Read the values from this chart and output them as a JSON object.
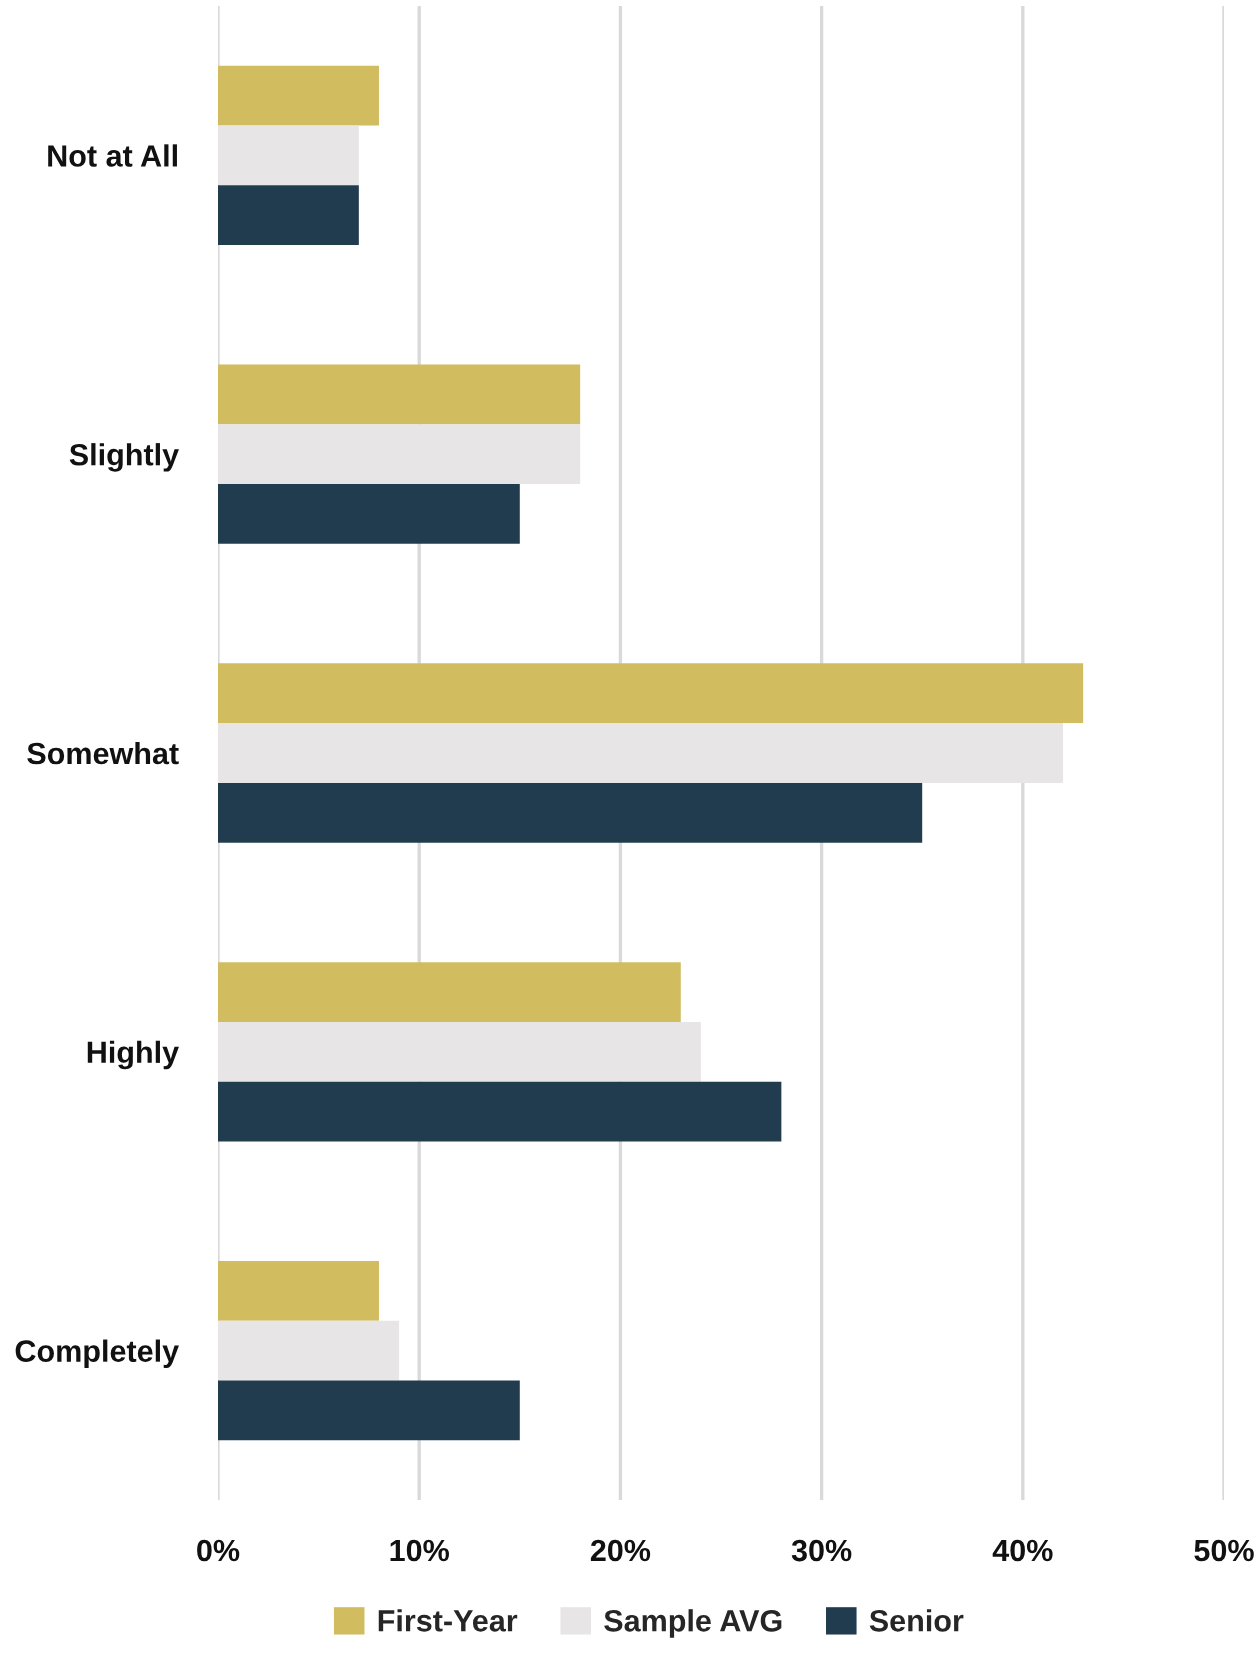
{
  "chart_data": {
    "type": "bar",
    "orientation": "horizontal",
    "categories": [
      "Not at All",
      "Slightly",
      "Somewhat",
      "Highly",
      "Completely"
    ],
    "series": [
      {
        "name": "First-Year",
        "color": "#d1bc60",
        "values": [
          8,
          18,
          43,
          23,
          8
        ]
      },
      {
        "name": "Sample AVG",
        "color": "#e7e5e6",
        "values": [
          7,
          18,
          42,
          24,
          9
        ]
      },
      {
        "name": "Senior",
        "color": "#223c4f",
        "values": [
          7,
          15,
          35,
          28,
          15
        ]
      }
    ],
    "xlim": [
      0,
      50
    ],
    "xticks": [
      {
        "value": 0,
        "label": "0%"
      },
      {
        "value": 10,
        "label": "10%"
      },
      {
        "value": 20,
        "label": "20%"
      },
      {
        "value": 30,
        "label": "30%"
      },
      {
        "value": 40,
        "label": "40%"
      },
      {
        "value": 50,
        "label": "50%"
      }
    ],
    "grid": "x",
    "legend": "bottom"
  }
}
